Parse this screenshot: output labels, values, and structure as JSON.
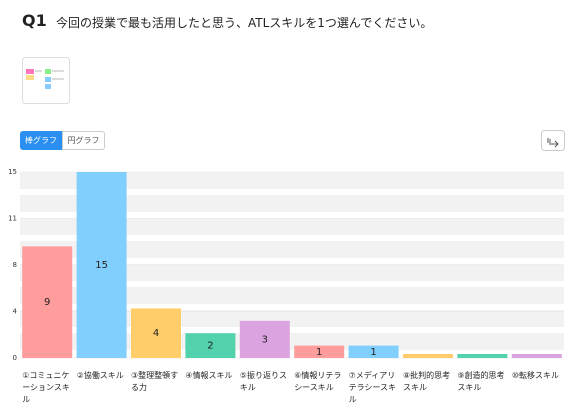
{
  "question": {
    "number": "Q1",
    "text": "今回の授業で最も活用したと思う、ATLスキルを1つ選んでください。"
  },
  "tabs": [
    "棒グラフ",
    "円グラフ"
  ],
  "chart_data": {
    "type": "bar",
    "categories": [
      "①コミュニケーションスキル",
      "②協働スキル",
      "③整理整頓する力",
      "④情報スキル",
      "⑤振り返りスキル",
      "⑥情報リテラシースキル",
      "⑦メディアリテラシースキル",
      "⑧批判的思考スキル",
      "⑨創造的思考スキル",
      "⑩転移スキル"
    ],
    "values": [
      9,
      15,
      4,
      2,
      3,
      1,
      1,
      0,
      0,
      0
    ],
    "colors": [
      "#ff9c9c",
      "#80cffd",
      "#ffcd6a",
      "#52d3ae",
      "#dba3e0",
      "#ff9c9c",
      "#80cffd",
      "#ffcd6a",
      "#52d3ae",
      "#dba3e0"
    ],
    "ylim": [
      0,
      15
    ],
    "yticks": [
      0,
      {
        "value": 3.75,
        "label": "4"
      },
      {
        "value": 7.5,
        "label": "8"
      },
      {
        "value": 11.25,
        "label": "11"
      },
      15
    ],
    "grid": true
  }
}
